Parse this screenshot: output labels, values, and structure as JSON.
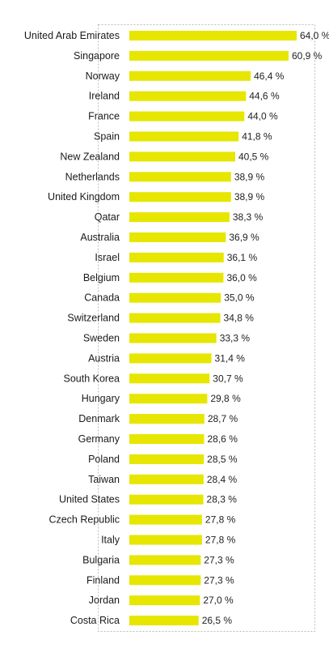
{
  "chart_data": {
    "type": "bar",
    "orientation": "horizontal",
    "title": "",
    "xlabel": "",
    "ylabel": "",
    "value_suffix": " %",
    "decimal_separator": ",",
    "xlim": [
      0,
      64
    ],
    "grid": false,
    "bar_color": "#e6e600",
    "frame_color": "#bbbbbb",
    "categories": [
      "United Arab Emirates",
      "Singapore",
      "Norway",
      "Ireland",
      "France",
      "Spain",
      "New Zealand",
      "Netherlands",
      "United Kingdom",
      "Qatar",
      "Australia",
      "Israel",
      "Belgium",
      "Canada",
      "Switzerland",
      "Sweden",
      "Austria",
      "South Korea",
      "Hungary",
      "Denmark",
      "Germany",
      "Poland",
      "Taiwan",
      "United States",
      "Czech Republic",
      "Italy",
      "Bulgaria",
      "Finland",
      "Jordan",
      "Costa Rica"
    ],
    "values": [
      64.0,
      60.9,
      46.4,
      44.6,
      44.0,
      41.8,
      40.5,
      38.9,
      38.9,
      38.3,
      36.9,
      36.1,
      36.0,
      35.0,
      34.8,
      33.3,
      31.4,
      30.7,
      29.8,
      28.7,
      28.6,
      28.5,
      28.4,
      28.3,
      27.8,
      27.8,
      27.3,
      27.3,
      27.0,
      26.5
    ]
  }
}
